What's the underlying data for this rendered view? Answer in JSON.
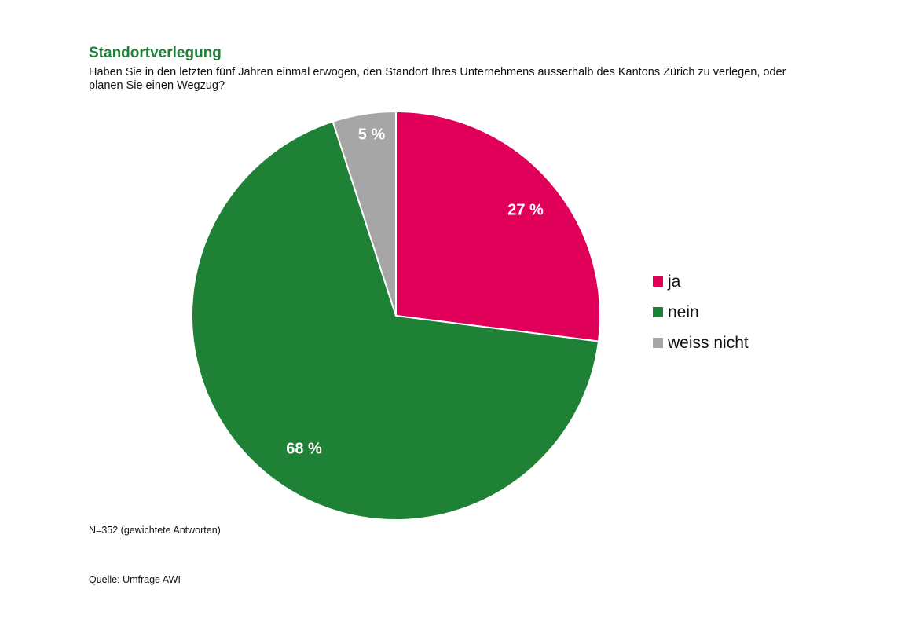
{
  "title": "Standortverlegung",
  "subtitle": "Haben Sie in den letzten fünf Jahren einmal erwogen, den Standort Ihres Unternehmens ausserhalb des Kantons Zürich zu verlegen, oder planen Sie einen Wegzug?",
  "note": "N=352 (gewichtete Antworten)",
  "source": "Quelle: Umfrage AWI",
  "chart_data": {
    "type": "pie",
    "title": "Standortverlegung",
    "categories": [
      "ja",
      "nein",
      "weiss nicht"
    ],
    "values": [
      27,
      68,
      5
    ],
    "data_labels": [
      "27 %",
      "68 %",
      "5 %"
    ],
    "colors": [
      "#e0005a",
      "#1e8136",
      "#a6a6a6"
    ],
    "start": "top",
    "direction": "clockwise",
    "legend_position": "right"
  }
}
